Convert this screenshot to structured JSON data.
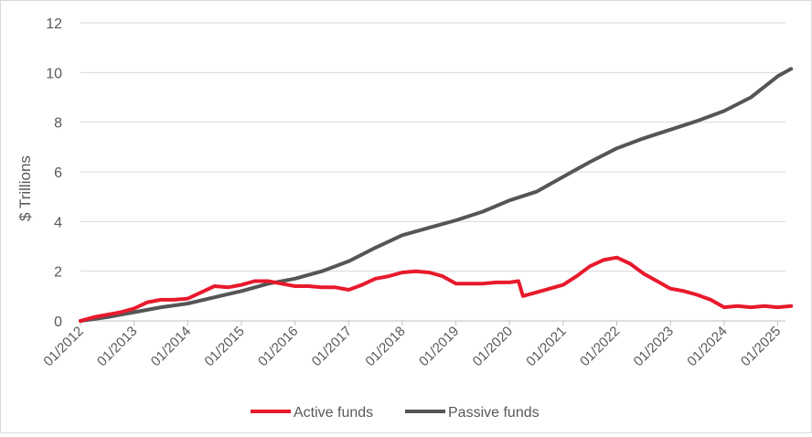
{
  "chart_data": {
    "type": "line",
    "title": "",
    "xlabel": "",
    "ylabel": "$ Trillions",
    "ylim": [
      0,
      12
    ],
    "yticks": [
      "0",
      "2",
      "4",
      "6",
      "8",
      "10",
      "12"
    ],
    "xlim": [
      "2012-01",
      "2025-04"
    ],
    "xtick_labels": [
      "01/2012",
      "01/2013",
      "01/2014",
      "01/2015",
      "01/2016",
      "01/2017",
      "01/2018",
      "01/2019",
      "01/2020",
      "01/2021",
      "01/2022",
      "01/2023",
      "01/2024",
      "01/2025"
    ],
    "grid": "horizontal",
    "legend": "bottom",
    "series": [
      {
        "name": "Active funds",
        "color": "#e8192c",
        "x": [
          "2012-01",
          "2012-04",
          "2012-07",
          "2012-10",
          "2013-01",
          "2013-04",
          "2013-07",
          "2013-10",
          "2014-01",
          "2014-04",
          "2014-07",
          "2014-10",
          "2015-01",
          "2015-04",
          "2015-07",
          "2015-10",
          "2016-01",
          "2016-04",
          "2016-07",
          "2016-10",
          "2017-01",
          "2017-04",
          "2017-07",
          "2017-10",
          "2018-01",
          "2018-04",
          "2018-07",
          "2018-10",
          "2019-01",
          "2019-04",
          "2019-07",
          "2019-10",
          "2020-01",
          "2020-03",
          "2020-04",
          "2020-07",
          "2020-10",
          "2021-01",
          "2021-04",
          "2021-07",
          "2021-10",
          "2022-01",
          "2022-04",
          "2022-07",
          "2022-10",
          "2023-01",
          "2023-04",
          "2023-07",
          "2023-10",
          "2024-01",
          "2024-04",
          "2024-07",
          "2024-10",
          "2025-01",
          "2025-04"
        ],
        "values": [
          0.0,
          0.15,
          0.25,
          0.35,
          0.5,
          0.75,
          0.85,
          0.85,
          0.9,
          1.15,
          1.4,
          1.35,
          1.45,
          1.6,
          1.6,
          1.5,
          1.4,
          1.4,
          1.35,
          1.35,
          1.25,
          1.45,
          1.7,
          1.8,
          1.95,
          2.0,
          1.95,
          1.8,
          1.5,
          1.5,
          1.5,
          1.55,
          1.55,
          1.6,
          1.0,
          1.15,
          1.3,
          1.45,
          1.8,
          2.2,
          2.45,
          2.55,
          2.3,
          1.9,
          1.6,
          1.3,
          1.2,
          1.05,
          0.85,
          0.55,
          0.6,
          0.55,
          0.6,
          0.55,
          0.6
        ]
      },
      {
        "name": "Passive funds",
        "color": "#555555",
        "x": [
          "2012-01",
          "2012-07",
          "2013-01",
          "2013-07",
          "2014-01",
          "2014-07",
          "2015-01",
          "2015-07",
          "2016-01",
          "2016-07",
          "2017-01",
          "2017-07",
          "2018-01",
          "2018-07",
          "2019-01",
          "2019-07",
          "2020-01",
          "2020-07",
          "2021-01",
          "2021-07",
          "2022-01",
          "2022-07",
          "2023-01",
          "2023-07",
          "2024-01",
          "2024-07",
          "2025-01",
          "2025-04"
        ],
        "values": [
          0.0,
          0.15,
          0.35,
          0.55,
          0.7,
          0.95,
          1.2,
          1.5,
          1.7,
          2.0,
          2.4,
          2.95,
          3.45,
          3.75,
          4.05,
          4.4,
          4.85,
          5.2,
          5.8,
          6.4,
          6.95,
          7.35,
          7.7,
          8.05,
          8.45,
          9.0,
          9.85,
          10.15
        ]
      }
    ]
  }
}
